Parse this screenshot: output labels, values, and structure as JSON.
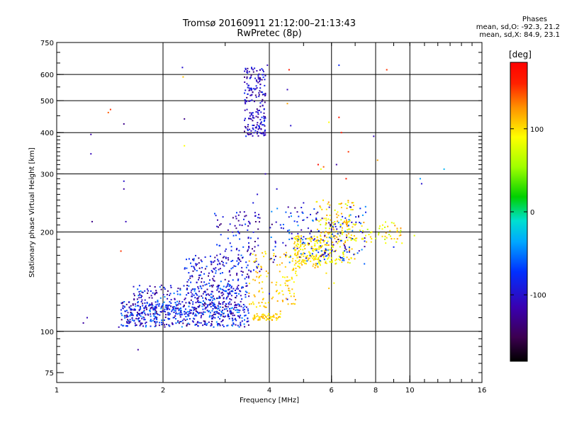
{
  "header": {
    "title_line1": "Tromsø 20160911 21:12:00–21:13:43",
    "title_line2": "RwPretec (8p)"
  },
  "stats": {
    "heading": "Phases",
    "line_o": "mean, sd,O: -92.3, 21.2",
    "line_x": "mean, sd,X:  84.9, 23.1"
  },
  "colorbar": {
    "label": "[deg]",
    "range": [
      -180,
      180
    ],
    "ticks": [
      100,
      0,
      -100
    ],
    "tick_labels": [
      "100",
      "0",
      "-100"
    ]
  },
  "chart_data": {
    "type": "scatter",
    "xlabel": "Frequency [MHz]",
    "ylabel": "Stationary phase Virtual Height [km]",
    "xscale": "log",
    "yscale": "log",
    "xlim": [
      1,
      16
    ],
    "ylim": [
      70,
      750
    ],
    "xticks": [
      1,
      2,
      4,
      6,
      8,
      10,
      16
    ],
    "xtick_labels": [
      "1",
      "2",
      "4",
      "6",
      "8",
      "10",
      "16"
    ],
    "yticks": [
      75,
      100,
      200,
      300,
      400,
      500,
      600,
      750
    ],
    "ytick_labels": [
      "75",
      "100",
      "200",
      "300",
      "400",
      "500",
      "600",
      "750"
    ],
    "grid_x": [
      2,
      4,
      6,
      8,
      10
    ],
    "grid_y": [
      100,
      200,
      300,
      400,
      500,
      600
    ],
    "color_encoding": "phase [deg]",
    "points": [
      [
        1.19,
        106,
        -120
      ],
      [
        1.22,
        110,
        -110
      ],
      [
        1.25,
        395,
        -120
      ],
      [
        1.25,
        345,
        -110
      ],
      [
        1.26,
        215,
        -130
      ],
      [
        1.4,
        460,
        140
      ],
      [
        1.42,
        470,
        150
      ],
      [
        1.5,
        103,
        -110
      ],
      [
        1.52,
        175,
        150
      ],
      [
        1.55,
        425,
        -130
      ],
      [
        1.55,
        285,
        -100
      ],
      [
        1.57,
        215,
        -110
      ],
      [
        1.55,
        270,
        -120
      ],
      [
        1.7,
        88,
        -120
      ],
      [
        2.27,
        630,
        -100
      ],
      [
        2.28,
        590,
        110
      ],
      [
        2.3,
        440,
        -130
      ],
      [
        2.3,
        365,
        90
      ],
      [
        2.6,
        130,
        -100
      ],
      [
        2.7,
        150,
        -110
      ],
      [
        2.9,
        160,
        -120
      ],
      [
        3.0,
        175,
        -100
      ],
      [
        3.1,
        185,
        -90
      ],
      [
        3.3,
        210,
        -100
      ],
      [
        3.4,
        230,
        -110
      ],
      [
        3.6,
        245,
        -90
      ],
      [
        3.7,
        260,
        -100
      ],
      [
        3.9,
        300,
        -110
      ],
      [
        4.2,
        270,
        -100
      ],
      [
        4.5,
        540,
        -110
      ],
      [
        4.6,
        420,
        -100
      ],
      [
        4.55,
        620,
        160
      ],
      [
        4.5,
        490,
        120
      ],
      [
        3.9,
        520,
        -100
      ],
      [
        3.95,
        640,
        -110
      ],
      [
        4.8,
        230,
        -120
      ],
      [
        5.0,
        245,
        -100
      ],
      [
        5.5,
        320,
        170
      ],
      [
        5.6,
        310,
        80
      ],
      [
        5.7,
        315,
        140
      ],
      [
        5.9,
        430,
        90
      ],
      [
        6.3,
        640,
        -80
      ],
      [
        6.3,
        445,
        160
      ],
      [
        6.4,
        400,
        160
      ],
      [
        6.2,
        320,
        -120
      ],
      [
        6.6,
        290,
        160
      ],
      [
        6.7,
        350,
        150
      ],
      [
        7.9,
        390,
        -110
      ],
      [
        8.1,
        330,
        120
      ],
      [
        8.6,
        620,
        150
      ],
      [
        10.3,
        195,
        80
      ],
      [
        10.7,
        290,
        -40
      ],
      [
        10.8,
        280,
        -100
      ],
      [
        12.5,
        310,
        -30
      ],
      [
        7.5,
        195,
        90
      ],
      [
        7.8,
        200,
        100
      ],
      [
        8.2,
        205,
        70
      ],
      [
        8.5,
        190,
        60
      ],
      [
        9.0,
        180,
        -80
      ],
      [
        9.5,
        185,
        90
      ],
      [
        5.8,
        150,
        100
      ],
      [
        5.9,
        135,
        110
      ],
      [
        6.1,
        140,
        90
      ],
      [
        4.5,
        125,
        -100
      ],
      [
        4.3,
        115,
        120
      ],
      [
        4.0,
        130,
        -90
      ]
    ],
    "clusters": [
      {
        "x": [
          1.52,
          3.5
        ],
        "y": [
          103,
          123
        ],
        "phase": [
          -140,
          -40
        ],
        "n": 500
      },
      {
        "x": [
          1.65,
          3.3
        ],
        "y": [
          112,
          138
        ],
        "phase": [
          -140,
          -40
        ],
        "n": 260
      },
      {
        "x": [
          2.3,
          3.5
        ],
        "y": [
          125,
          170
        ],
        "phase": [
          -140,
          -50
        ],
        "n": 180
      },
      {
        "x": [
          2.8,
          3.8
        ],
        "y": [
          150,
          230
        ],
        "phase": [
          -140,
          -60
        ],
        "n": 110
      },
      {
        "x": [
          3.4,
          3.9
        ],
        "y": [
          390,
          630
        ],
        "phase": [
          -140,
          -70
        ],
        "n": 200
      },
      {
        "x": [
          3.6,
          4.3
        ],
        "y": [
          108,
          113
        ],
        "phase": [
          90,
          120
        ],
        "n": 60
      },
      {
        "x": [
          3.5,
          4.8
        ],
        "y": [
          118,
          175
        ],
        "phase": [
          90,
          120
        ],
        "n": 120
      },
      {
        "x": [
          4.7,
          5.6
        ],
        "y": [
          155,
          195
        ],
        "phase": [
          80,
          120
        ],
        "n": 160
      },
      {
        "x": [
          5.4,
          7.0
        ],
        "y": [
          160,
          250
        ],
        "phase": [
          70,
          130
        ],
        "n": 200
      },
      {
        "x": [
          4.0,
          7.5
        ],
        "y": [
          160,
          240
        ],
        "phase": [
          -140,
          -40
        ],
        "n": 180
      },
      {
        "x": [
          6.5,
          9.5
        ],
        "y": [
          185,
          215
        ],
        "phase": [
          60,
          130
        ],
        "n": 60
      }
    ]
  }
}
